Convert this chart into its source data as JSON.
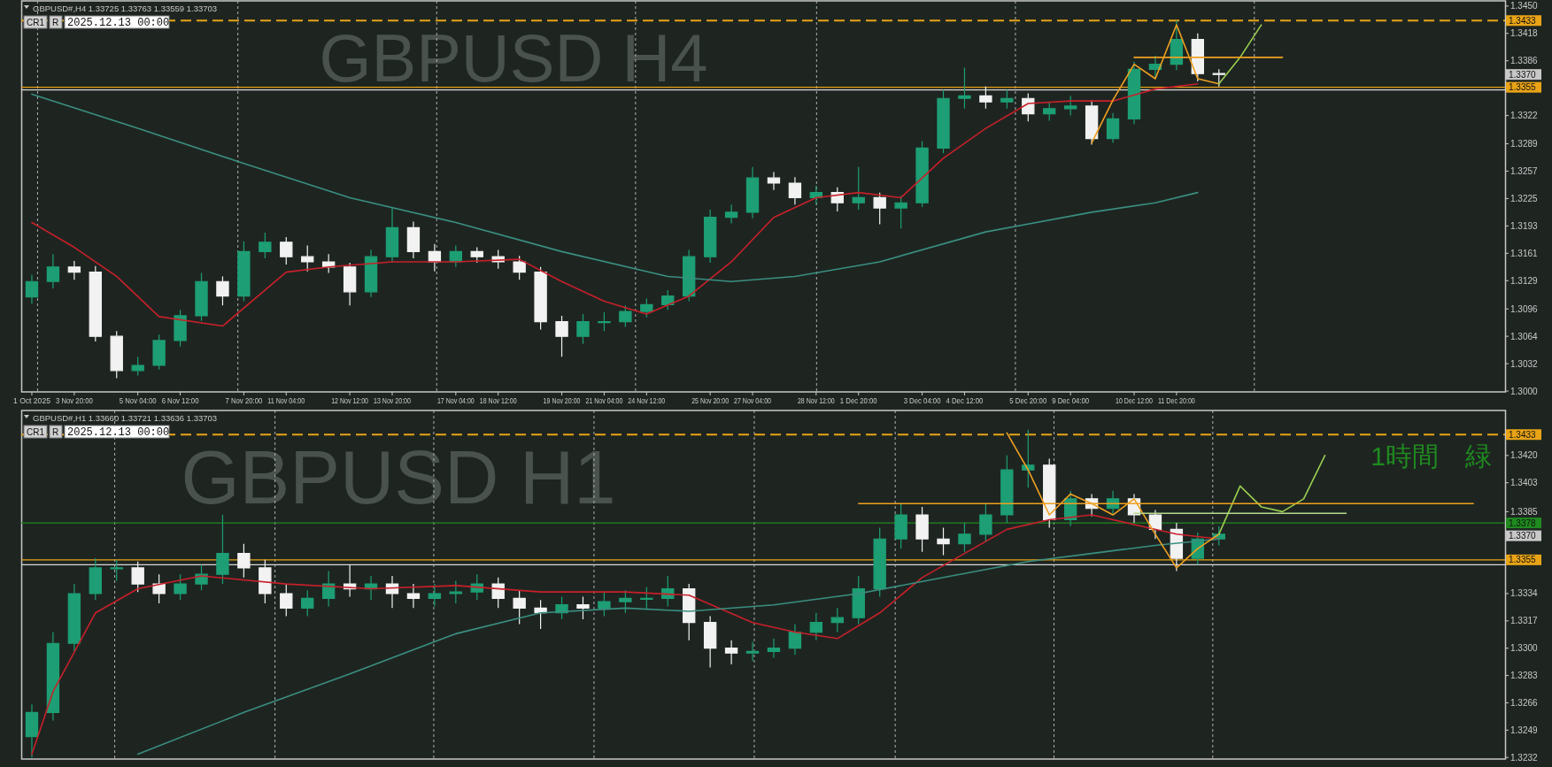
{
  "chart_data": [
    {
      "type": "candlestick",
      "title": "GBPUSD#,H4  1.33725 1.33763 1.33559 1.33703",
      "grid": "x",
      "annotations": [
        "GBPUSD H4",
        "CR1",
        "R",
        "2025.12.13 00:00",
        {
          "text": "1.3370",
          "y": 1.337
        }
      ],
      "categories": [
        "1 Oct 2025",
        null,
        "3 Nov 20:00",
        null,
        null,
        "5 Nov 04:00",
        null,
        "6 Nov 12:00",
        null,
        null,
        "7 Nov 20:00",
        null,
        "11 Nov 04:00",
        null,
        null,
        "12 Nov 12:00",
        null,
        "13 Nov 20:00",
        null,
        null,
        "17 Nov 04:00",
        null,
        "18 Nov 12:00",
        null,
        null,
        "19 Nov 20:00",
        null,
        "21 Nov 04:00",
        null,
        "24 Nov 12:00",
        null,
        null,
        "25 Nov 20:00",
        null,
        "27 Nov 04:00",
        null,
        null,
        "28 Nov 12:00",
        null,
        "1 Dec 20:00",
        null,
        null,
        "3 Dec 04:00",
        null,
        "4 Dec 12:00",
        null,
        null,
        "5 Dec 20:00",
        null,
        "9 Dec 04:00",
        null,
        null,
        "10 Dec 12:00",
        null,
        "11 Dec 20:00",
        null,
        null,
        null,
        null,
        null,
        null,
        null,
        null,
        null,
        null,
        null,
        null,
        null,
        null,
        null
      ],
      "ohlc": [
        [
          1.311,
          1.3136,
          1.3102,
          1.3128
        ],
        [
          1.3128,
          1.316,
          1.312,
          1.3145
        ],
        [
          1.3145,
          1.3152,
          1.313,
          1.3139
        ],
        [
          1.3139,
          1.3146,
          1.3058,
          1.3064
        ],
        [
          1.3064,
          1.307,
          1.3015,
          1.3024
        ],
        [
          1.3024,
          1.304,
          1.3018,
          1.303
        ],
        [
          1.303,
          1.3066,
          1.3025,
          1.3059
        ],
        [
          1.3059,
          1.3095,
          1.3052,
          1.3088
        ],
        [
          1.3088,
          1.3138,
          1.3082,
          1.3128
        ],
        [
          1.3128,
          1.3134,
          1.31,
          1.3111
        ],
        [
          1.3111,
          1.3175,
          1.3105,
          1.3163
        ],
        [
          1.3163,
          1.3185,
          1.3155,
          1.3174
        ],
        [
          1.3174,
          1.318,
          1.3148,
          1.3157
        ],
        [
          1.3157,
          1.317,
          1.314,
          1.3151
        ],
        [
          1.3151,
          1.316,
          1.3138,
          1.3145
        ],
        [
          1.3145,
          1.315,
          1.31,
          1.3116
        ],
        [
          1.3116,
          1.3165,
          1.311,
          1.3157
        ],
        [
          1.3157,
          1.3215,
          1.315,
          1.3191
        ],
        [
          1.3191,
          1.3198,
          1.3155,
          1.3163
        ],
        [
          1.3163,
          1.3172,
          1.314,
          1.3151
        ],
        [
          1.3151,
          1.317,
          1.3145,
          1.3163
        ],
        [
          1.3163,
          1.3168,
          1.315,
          1.3157
        ],
        [
          1.3157,
          1.3165,
          1.3143,
          1.3151
        ],
        [
          1.3151,
          1.3158,
          1.313,
          1.3139
        ],
        [
          1.3139,
          1.3145,
          1.3072,
          1.3081
        ],
        [
          1.3081,
          1.3088,
          1.304,
          1.3064
        ],
        [
          1.3064,
          1.309,
          1.3055,
          1.3081
        ],
        [
          1.3081,
          1.3092,
          1.307,
          1.3081
        ],
        [
          1.3081,
          1.31,
          1.3075,
          1.3093
        ],
        [
          1.3093,
          1.3108,
          1.3086,
          1.3101
        ],
        [
          1.3101,
          1.3118,
          1.3095,
          1.3111
        ],
        [
          1.3111,
          1.3165,
          1.3105,
          1.3157
        ],
        [
          1.3157,
          1.3212,
          1.315,
          1.3203
        ],
        [
          1.3203,
          1.3218,
          1.3196,
          1.3209
        ],
        [
          1.3209,
          1.3262,
          1.3202,
          1.3249
        ],
        [
          1.3249,
          1.3256,
          1.3235,
          1.3243
        ],
        [
          1.3243,
          1.325,
          1.3218,
          1.3226
        ],
        [
          1.3226,
          1.324,
          1.3218,
          1.3232
        ],
        [
          1.3232,
          1.3238,
          1.321,
          1.322
        ],
        [
          1.322,
          1.3262,
          1.3212,
          1.3226
        ],
        [
          1.3226,
          1.3232,
          1.3195,
          1.3214
        ],
        [
          1.3214,
          1.3228,
          1.319,
          1.322
        ],
        [
          1.322,
          1.3292,
          1.3215,
          1.3284
        ],
        [
          1.3284,
          1.3352,
          1.3278,
          1.3342
        ],
        [
          1.3342,
          1.3378,
          1.333,
          1.3345
        ],
        [
          1.3345,
          1.3356,
          1.333,
          1.3338
        ],
        [
          1.3338,
          1.3352,
          1.333,
          1.3342
        ],
        [
          1.3342,
          1.3348,
          1.3315,
          1.3324
        ],
        [
          1.3324,
          1.3338,
          1.3316,
          1.333
        ],
        [
          1.333,
          1.3345,
          1.3322,
          1.3333
        ],
        [
          1.3333,
          1.334,
          1.3288,
          1.3295
        ],
        [
          1.3295,
          1.3325,
          1.329,
          1.3318
        ],
        [
          1.3318,
          1.3385,
          1.3312,
          1.3376
        ],
        [
          1.3376,
          1.3392,
          1.3365,
          1.3382
        ],
        [
          1.3382,
          1.3433,
          1.3375,
          1.3411
        ],
        [
          1.3411,
          1.3418,
          1.3362,
          1.3371
        ],
        [
          1.3371,
          1.3376,
          1.3356,
          1.337
        ],
        null,
        null,
        null,
        null,
        null,
        null,
        null,
        null,
        null,
        null,
        null,
        null,
        null
      ],
      "series": [
        {
          "type": "line",
          "color": "#c8202a",
          "values": [
            1.3197,
            null,
            1.3168,
            null,
            1.3134,
            null,
            1.3087,
            null,
            null,
            1.3076,
            null,
            null,
            1.3139,
            null,
            1.3145,
            null,
            null,
            1.3151,
            null,
            null,
            1.3151,
            null,
            null,
            1.3154,
            null,
            1.3128,
            null,
            1.3105,
            null,
            1.309,
            null,
            1.3111,
            null,
            1.3151,
            null,
            1.3203,
            null,
            1.3226,
            null,
            1.3232,
            null,
            1.3226,
            null,
            1.3272,
            null,
            1.3307,
            null,
            1.3336,
            null,
            1.3339,
            null,
            1.3339,
            null,
            1.3353,
            null,
            1.3359,
            null,
            null,
            null,
            null,
            null,
            null,
            null,
            null,
            null,
            null,
            null,
            null,
            null,
            null
          ]
        },
        {
          "type": "line",
          "color": "#3a8f80",
          "values": [
            1.3347,
            null,
            null,
            null,
            null,
            1.3307,
            null,
            null,
            null,
            null,
            1.3266,
            null,
            null,
            null,
            null,
            1.3226,
            null,
            null,
            null,
            null,
            1.3197,
            null,
            null,
            null,
            null,
            1.3163,
            null,
            null,
            null,
            null,
            1.3134,
            null,
            null,
            1.3128,
            null,
            null,
            1.3134,
            null,
            null,
            null,
            1.3151,
            null,
            null,
            null,
            null,
            1.3186,
            null,
            null,
            null,
            null,
            1.3209,
            null,
            null,
            1.322,
            null,
            1.3232,
            null,
            null,
            null,
            null,
            null,
            null,
            null,
            null,
            null,
            null,
            null,
            null,
            null,
            null
          ]
        },
        {
          "type": "line",
          "color": "#f0a020",
          "values": [
            null,
            null,
            null,
            null,
            null,
            null,
            null,
            null,
            null,
            null,
            null,
            null,
            null,
            null,
            null,
            null,
            null,
            null,
            null,
            null,
            null,
            null,
            null,
            null,
            null,
            null,
            null,
            null,
            null,
            null,
            null,
            null,
            null,
            null,
            null,
            null,
            null,
            null,
            null,
            null,
            null,
            null,
            null,
            null,
            null,
            null,
            null,
            null,
            null,
            null,
            1.329,
            1.334,
            1.3382,
            1.3365,
            1.3428,
            1.3365,
            1.3359,
            null,
            null,
            null,
            null,
            null,
            null,
            null,
            null,
            null,
            null,
            null,
            null,
            null
          ]
        },
        {
          "type": "line",
          "color": "#9acd50",
          "values": [
            null,
            null,
            null,
            null,
            null,
            null,
            null,
            null,
            null,
            null,
            null,
            null,
            null,
            null,
            null,
            null,
            null,
            null,
            null,
            null,
            null,
            null,
            null,
            null,
            null,
            null,
            null,
            null,
            null,
            null,
            null,
            null,
            null,
            null,
            null,
            null,
            null,
            null,
            null,
            null,
            null,
            null,
            null,
            null,
            null,
            null,
            null,
            null,
            null,
            null,
            null,
            null,
            null,
            null,
            null,
            null,
            1.3359,
            1.339,
            1.3428,
            null,
            null,
            null,
            null,
            null,
            null,
            null,
            null,
            null,
            null,
            null
          ]
        },
        {
          "type": "line",
          "color": "#f0a020",
          "values": [
            null,
            null,
            null,
            null,
            null,
            null,
            null,
            null,
            null,
            null,
            null,
            null,
            null,
            null,
            null,
            null,
            null,
            null,
            null,
            null,
            null,
            null,
            null,
            null,
            null,
            null,
            null,
            null,
            null,
            null,
            null,
            null,
            null,
            null,
            null,
            null,
            null,
            null,
            null,
            null,
            null,
            null,
            null,
            null,
            null,
            null,
            null,
            null,
            null,
            null,
            null,
            null,
            1.339,
            null,
            null,
            null,
            null,
            null,
            null,
            1.339,
            null,
            null,
            null,
            null,
            null,
            null,
            null,
            null,
            null,
            null
          ]
        }
      ],
      "ylim": [
        1.2999,
        1.3456
      ],
      "yticks": [
        {
          "value": 1.3,
          "label": "1.3000"
        },
        {
          "value": 1.3032,
          "label": "1.3032"
        },
        {
          "value": 1.3064,
          "label": "1.3064"
        },
        {
          "value": 1.3096,
          "label": "1.3096"
        },
        {
          "value": 1.3129,
          "label": "1.3129"
        },
        {
          "value": 1.3161,
          "label": "1.3161"
        },
        {
          "value": 1.3193,
          "label": "1.3193"
        },
        {
          "value": 1.3225,
          "label": "1.3225"
        },
        {
          "value": 1.3257,
          "label": "1.3257"
        },
        {
          "value": 1.3289,
          "label": "1.3289"
        },
        {
          "value": 1.3322,
          "label": "1.3322"
        },
        {
          "value": 1.3386,
          "label": "1.3386"
        },
        {
          "value": 1.3418,
          "label": "1.3418"
        },
        {
          "value": 1.345,
          "label": "1.3450"
        }
      ],
      "ref_lines": [
        {
          "axis": "y",
          "value": 1.3433,
          "label": "1.3433",
          "color": "#e8a317",
          "line_style": "dashed"
        },
        {
          "axis": "y",
          "value": 1.3355,
          "label": "1.3355",
          "color": "#e8a317",
          "line_style": "solid"
        },
        {
          "axis": "y",
          "value": 1.3352,
          "color": "#d8d8d8",
          "line_style": "solid"
        }
      ]
    },
    {
      "type": "candlestick",
      "title": "GBPUSD#,H1  1.33660 1.33721 1.33636 1.33703",
      "grid": "x",
      "annotations": [
        "GBPUSD H1",
        "CR1",
        "R",
        "2025.12.13 00:00",
        "1時間　緑",
        {
          "text": "1.3370",
          "y": 1.337
        }
      ],
      "categories": [
        null,
        null,
        null,
        null,
        null,
        null,
        null,
        null,
        null,
        null,
        null,
        null,
        null,
        null,
        null,
        null,
        null,
        null,
        null,
        null,
        null,
        null,
        null,
        null,
        null,
        null,
        null,
        null,
        null,
        null,
        null,
        null,
        null,
        null,
        null,
        null,
        null,
        null,
        null,
        null,
        null,
        null,
        null,
        null,
        null,
        null,
        null,
        null,
        null,
        null,
        null,
        null,
        null,
        null,
        null,
        null,
        null,
        null,
        null,
        null,
        null,
        null,
        null,
        null,
        null,
        null,
        null,
        null,
        null,
        null
      ],
      "tick_labels": "y",
      "ohlc": [
        [
          1.3245,
          1.3265,
          1.3232,
          1.326
        ],
        [
          1.326,
          1.331,
          1.3255,
          1.3303
        ],
        [
          1.3303,
          1.334,
          1.3298,
          1.3334
        ],
        [
          1.3334,
          1.3356,
          1.333,
          1.335
        ],
        [
          1.335,
          1.3355,
          1.3342,
          1.335
        ],
        [
          1.335,
          1.3354,
          1.3335,
          1.334
        ],
        [
          1.334,
          1.3346,
          1.3328,
          1.3334
        ],
        [
          1.3334,
          1.3346,
          1.333,
          1.334
        ],
        [
          1.334,
          1.3352,
          1.3336,
          1.3346
        ],
        [
          1.3346,
          1.3383,
          1.334,
          1.3359
        ],
        [
          1.3359,
          1.3365,
          1.3344,
          1.335
        ],
        [
          1.335,
          1.3355,
          1.3328,
          1.3334
        ],
        [
          1.3334,
          1.334,
          1.332,
          1.3325
        ],
        [
          1.3325,
          1.3336,
          1.332,
          1.3331
        ],
        [
          1.3331,
          1.3348,
          1.3326,
          1.334
        ],
        [
          1.334,
          1.3352,
          1.3332,
          1.3337
        ],
        [
          1.3337,
          1.3345,
          1.333,
          1.334
        ],
        [
          1.334,
          1.3345,
          1.3325,
          1.3334
        ],
        [
          1.3334,
          1.334,
          1.3325,
          1.3331
        ],
        [
          1.3331,
          1.334,
          1.3326,
          1.3334
        ],
        [
          1.3334,
          1.3342,
          1.3328,
          1.3335
        ],
        [
          1.3335,
          1.3346,
          1.333,
          1.334
        ],
        [
          1.334,
          1.3344,
          1.3325,
          1.3331
        ],
        [
          1.3331,
          1.3336,
          1.3315,
          1.3325
        ],
        [
          1.3325,
          1.333,
          1.3312,
          1.3322
        ],
        [
          1.3322,
          1.3332,
          1.3318,
          1.3327
        ],
        [
          1.3327,
          1.3332,
          1.3318,
          1.3325
        ],
        [
          1.3325,
          1.3335,
          1.332,
          1.3329
        ],
        [
          1.3329,
          1.3336,
          1.3322,
          1.3331
        ],
        [
          1.3331,
          1.3338,
          1.3324,
          1.3331
        ],
        [
          1.3331,
          1.3345,
          1.3326,
          1.3337
        ],
        [
          1.3337,
          1.334,
          1.3305,
          1.3316
        ],
        [
          1.3316,
          1.332,
          1.3288,
          1.33
        ],
        [
          1.33,
          1.3305,
          1.329,
          1.3297
        ],
        [
          1.3297,
          1.3304,
          1.3292,
          1.3298
        ],
        [
          1.3298,
          1.3306,
          1.3294,
          1.33
        ],
        [
          1.33,
          1.3315,
          1.3296,
          1.331
        ],
        [
          1.331,
          1.3322,
          1.3305,
          1.3316
        ],
        [
          1.3316,
          1.3325,
          1.331,
          1.3319
        ],
        [
          1.3319,
          1.3345,
          1.3315,
          1.3337
        ],
        [
          1.3337,
          1.3375,
          1.3332,
          1.3368
        ],
        [
          1.3368,
          1.339,
          1.3362,
          1.3383
        ],
        [
          1.3383,
          1.3388,
          1.336,
          1.3368
        ],
        [
          1.3368,
          1.3375,
          1.3358,
          1.3365
        ],
        [
          1.3365,
          1.3378,
          1.336,
          1.3371
        ],
        [
          1.3371,
          1.339,
          1.3366,
          1.3383
        ],
        [
          1.3383,
          1.342,
          1.3378,
          1.3411
        ],
        [
          1.3411,
          1.3436,
          1.34,
          1.3414
        ],
        [
          1.3414,
          1.3418,
          1.3375,
          1.338
        ],
        [
          1.338,
          1.3398,
          1.3376,
          1.3393
        ],
        [
          1.3393,
          1.3396,
          1.3382,
          1.3387
        ],
        [
          1.3387,
          1.3398,
          1.3383,
          1.3393
        ],
        [
          1.3393,
          1.3396,
          1.3378,
          1.3383
        ],
        [
          1.3383,
          1.3386,
          1.3368,
          1.3374
        ],
        [
          1.3374,
          1.3378,
          1.3348,
          1.3356
        ],
        [
          1.3356,
          1.3372,
          1.3352,
          1.3368
        ],
        [
          1.3368,
          1.3376,
          1.3364,
          1.3371
        ],
        null,
        null,
        null,
        null,
        null,
        null,
        null,
        null,
        null,
        null,
        null,
        null,
        null
      ],
      "series": [
        {
          "type": "line",
          "color": "#c8202a",
          "values": [
            1.3234,
            1.3273,
            null,
            1.3322,
            null,
            1.3337,
            null,
            null,
            1.3345,
            null,
            null,
            null,
            1.334,
            null,
            null,
            null,
            1.3337,
            null,
            null,
            null,
            1.3339,
            null,
            null,
            null,
            1.3335,
            null,
            null,
            null,
            1.3335,
            null,
            null,
            1.3333,
            null,
            null,
            1.3316,
            null,
            1.331,
            null,
            1.3306,
            null,
            1.3322,
            null,
            1.3344,
            null,
            1.3359,
            null,
            1.3374,
            null,
            1.338,
            null,
            1.3383,
            null,
            1.3377,
            null,
            1.3371,
            null,
            1.3368,
            null,
            null,
            null,
            null,
            null,
            null,
            null,
            null,
            null,
            null,
            null,
            null,
            null
          ]
        },
        {
          "type": "line",
          "color": "#3a8f80",
          "values": [
            null,
            null,
            null,
            null,
            null,
            1.3234,
            null,
            null,
            null,
            null,
            1.326,
            null,
            null,
            null,
            null,
            1.3284,
            null,
            null,
            null,
            null,
            1.3309,
            null,
            null,
            null,
            1.3322,
            null,
            null,
            null,
            1.3325,
            null,
            null,
            1.3323,
            null,
            null,
            null,
            1.3327,
            null,
            null,
            null,
            1.3334,
            null,
            null,
            null,
            1.3344,
            null,
            null,
            null,
            1.3354,
            null,
            null,
            1.3359,
            null,
            null,
            1.3364,
            null,
            null,
            1.3368,
            null,
            null,
            null,
            null,
            null,
            null,
            null,
            null,
            null,
            null,
            null,
            null,
            null
          ]
        },
        {
          "type": "line",
          "color": "#f0a020",
          "values": [
            null,
            null,
            null,
            null,
            null,
            null,
            null,
            null,
            null,
            null,
            null,
            null,
            null,
            null,
            null,
            null,
            null,
            null,
            null,
            null,
            null,
            null,
            null,
            null,
            null,
            null,
            null,
            null,
            null,
            null,
            null,
            null,
            null,
            null,
            null,
            null,
            null,
            null,
            null,
            null,
            null,
            null,
            null,
            null,
            null,
            null,
            1.3434,
            1.3411,
            1.3383,
            1.3396,
            1.339,
            1.3383,
            1.3393,
            1.3371,
            1.335,
            1.3362,
            1.3371,
            null,
            null,
            null,
            null,
            null,
            null,
            null,
            null,
            null,
            null,
            null,
            null,
            null
          ]
        },
        {
          "type": "line",
          "color": "#9acd50",
          "values": [
            null,
            null,
            null,
            null,
            null,
            null,
            null,
            null,
            null,
            null,
            null,
            null,
            null,
            null,
            null,
            null,
            null,
            null,
            null,
            null,
            null,
            null,
            null,
            null,
            null,
            null,
            null,
            null,
            null,
            null,
            null,
            null,
            null,
            null,
            null,
            null,
            null,
            null,
            null,
            null,
            null,
            null,
            null,
            null,
            null,
            null,
            null,
            null,
            null,
            null,
            null,
            null,
            null,
            null,
            null,
            null,
            1.3371,
            1.3401,
            1.3388,
            1.3385,
            1.3393,
            1.342,
            null,
            null,
            null,
            null,
            null,
            null,
            null,
            null
          ]
        },
        {
          "type": "line",
          "color": "#b5d98a",
          "values": [
            null,
            null,
            null,
            null,
            null,
            null,
            null,
            null,
            null,
            null,
            null,
            null,
            null,
            null,
            null,
            null,
            null,
            null,
            null,
            null,
            null,
            null,
            null,
            null,
            null,
            null,
            null,
            null,
            null,
            null,
            null,
            null,
            null,
            null,
            null,
            null,
            null,
            null,
            null,
            null,
            null,
            null,
            null,
            null,
            null,
            null,
            null,
            null,
            null,
            null,
            null,
            null,
            1.3384,
            null,
            null,
            null,
            null,
            null,
            null,
            null,
            null,
            null,
            1.3384,
            null,
            null,
            null,
            null,
            null,
            null,
            null
          ]
        },
        {
          "type": "line",
          "color": "#f0a020",
          "values": [
            null,
            null,
            null,
            null,
            null,
            null,
            null,
            null,
            null,
            null,
            null,
            null,
            null,
            null,
            null,
            null,
            null,
            null,
            null,
            null,
            null,
            null,
            null,
            null,
            null,
            null,
            null,
            null,
            null,
            null,
            null,
            null,
            null,
            null,
            null,
            null,
            null,
            null,
            null,
            1.339,
            null,
            null,
            null,
            null,
            null,
            null,
            null,
            null,
            null,
            null,
            null,
            null,
            null,
            null,
            null,
            null,
            null,
            null,
            null,
            null,
            null,
            null,
            null,
            null,
            null,
            null,
            null,
            null,
            1.339,
            null
          ]
        }
      ],
      "ylim": [
        1.3231,
        1.3448
      ],
      "yticks": [
        {
          "value": 1.3232,
          "label": "1.3232"
        },
        {
          "value": 1.3249,
          "label": "1.3249"
        },
        {
          "value": 1.3266,
          "label": "1.3266"
        },
        {
          "value": 1.3283,
          "label": "1.3283"
        },
        {
          "value": 1.33,
          "label": "1.3300"
        },
        {
          "value": 1.3317,
          "label": "1.3317"
        },
        {
          "value": 1.3334,
          "label": "1.3334"
        },
        {
          "value": 1.3385,
          "label": "1.3385"
        },
        {
          "value": 1.3403,
          "label": "1.3403"
        },
        {
          "value": 1.342,
          "label": "1.3420"
        }
      ],
      "ref_lines": [
        {
          "axis": "y",
          "value": 1.3433,
          "label": "1.3433",
          "color": "#e8a317",
          "line_style": "dashed"
        },
        {
          "axis": "y",
          "value": 1.3378,
          "label": "1.3378",
          "color": "#1f8a1f",
          "line_style": "solid"
        },
        {
          "axis": "y",
          "value": 1.3355,
          "label": "1.3355",
          "color": "#e8a317",
          "line_style": "solid"
        },
        {
          "axis": "y",
          "value": 1.3352,
          "color": "#d8d8d8",
          "line_style": "solid"
        }
      ]
    }
  ]
}
